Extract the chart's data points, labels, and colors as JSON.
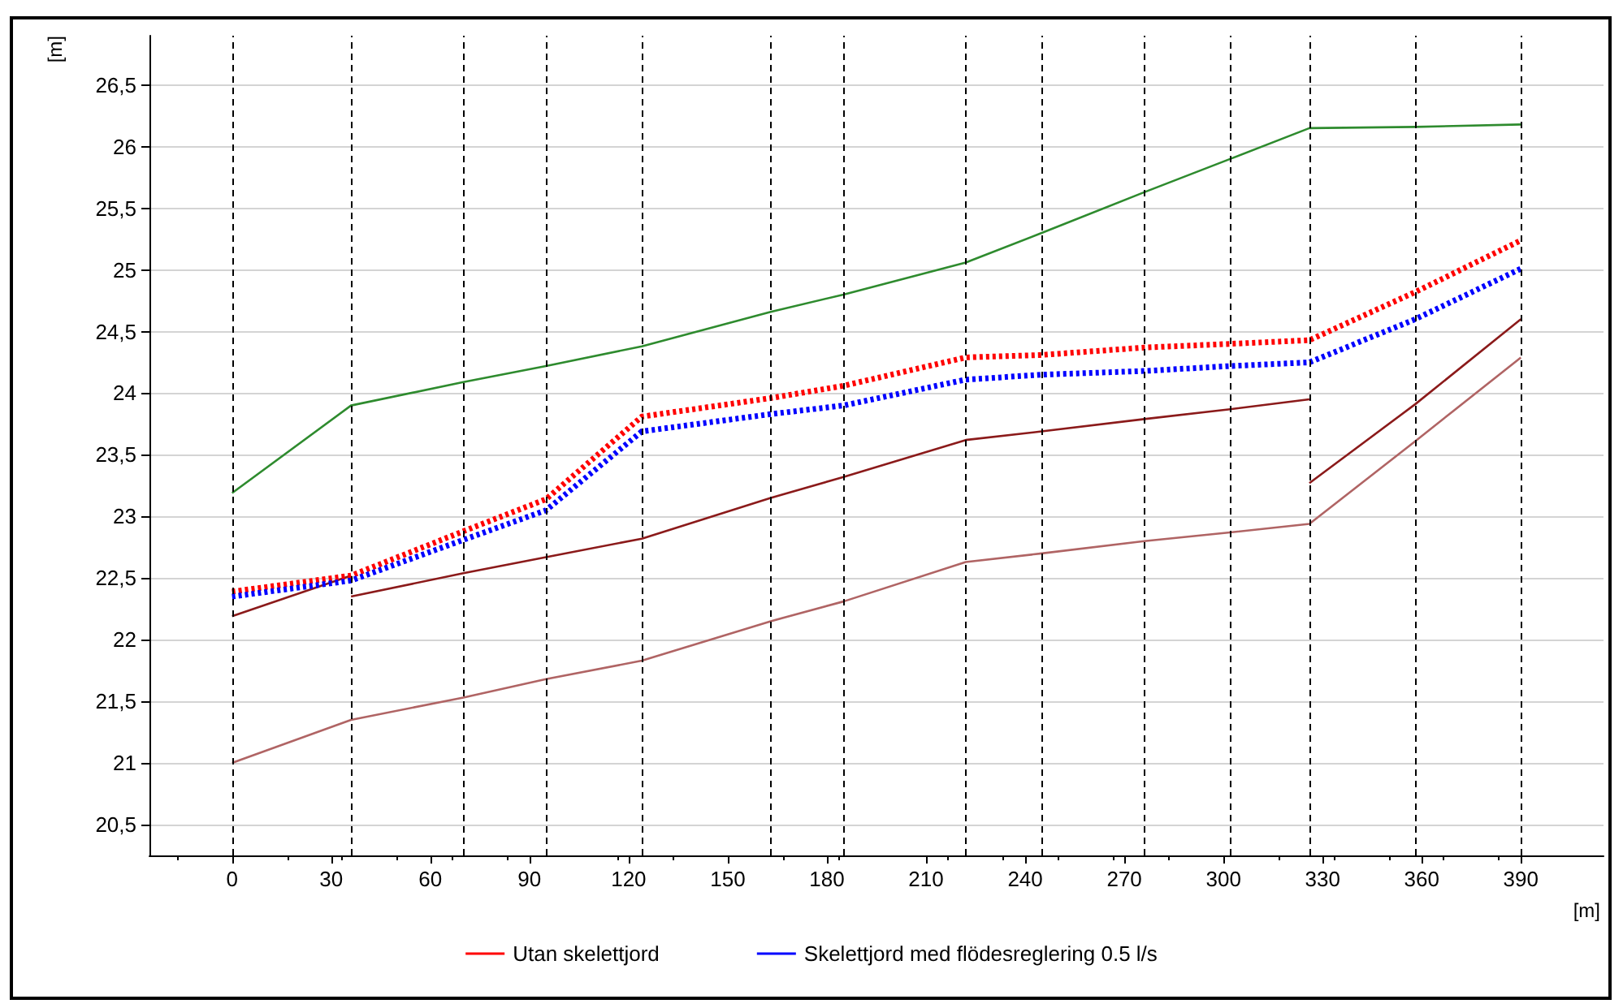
{
  "chart_data": {
    "type": "line",
    "xlabel": "[m]",
    "ylabel": "[m]",
    "xlim": [
      -25,
      415
    ],
    "xticks": [
      0,
      30,
      60,
      90,
      120,
      150,
      180,
      210,
      240,
      270,
      300,
      330,
      360,
      390
    ],
    "ylim": [
      20.25,
      26.9
    ],
    "yticks": [
      {
        "value": 20.5,
        "label": "20,5"
      },
      21,
      {
        "value": 21.5,
        "label": "21,5"
      },
      22,
      {
        "value": 22.5,
        "label": "22,5"
      },
      23,
      {
        "value": 23.5,
        "label": "23,5"
      },
      24,
      {
        "value": 24.5,
        "label": "24,5"
      },
      25,
      {
        "value": 25.5,
        "label": "25,5"
      },
      26,
      {
        "value": 26.5,
        "label": "26,5"
      }
    ],
    "grid": "y",
    "legend": "bottom",
    "marker": "none",
    "series": [
      {
        "color": "#2e8b2e",
        "line_style": "solid",
        "x": [
          0,
          36,
          70,
          95,
          124,
          163,
          185,
          222,
          245,
          276,
          302,
          326,
          358,
          390
        ],
        "values": [
          23.19,
          23.9,
          24.09,
          24.22,
          24.38,
          24.66,
          24.8,
          25.06,
          25.3,
          25.63,
          25.9,
          26.15,
          26.16,
          26.18
        ]
      },
      {
        "color": "#b06464",
        "line_style": "solid",
        "x": [
          0,
          36,
          70,
          95,
          124,
          163,
          185,
          222,
          245,
          276,
          302,
          326,
          358,
          390
        ],
        "values": [
          21.0,
          21.35,
          21.53,
          21.68,
          21.83,
          22.15,
          22.31,
          22.63,
          22.7,
          22.8,
          22.87,
          22.94,
          23.61,
          24.29
        ]
      },
      {
        "color": "#8b1a1a",
        "line_style": "solid",
        "x": [
          0,
          36
        ],
        "values": [
          22.19,
          22.52
        ]
      },
      {
        "color": "#8b1a1a",
        "line_style": "solid",
        "x": [
          36,
          70,
          95,
          124,
          163,
          185,
          222,
          245,
          276,
          302,
          326
        ],
        "values": [
          22.35,
          22.54,
          22.67,
          22.82,
          23.15,
          23.32,
          23.62,
          23.69,
          23.79,
          23.87,
          23.95
        ]
      },
      {
        "color": "#8b1a1a",
        "line_style": "solid",
        "x": [
          326,
          358,
          390
        ],
        "values": [
          23.27,
          23.91,
          24.6
        ]
      },
      {
        "name": "Utan skelettjord",
        "color": "#ff0000",
        "line_style": "dotted",
        "x": [
          0,
          36,
          70,
          95,
          124,
          163,
          185,
          222,
          245,
          276,
          302,
          326,
          358,
          390
        ],
        "values": [
          22.39,
          22.52,
          22.88,
          23.14,
          23.81,
          23.96,
          24.06,
          24.29,
          24.31,
          24.37,
          24.4,
          24.43,
          24.82,
          25.24
        ]
      },
      {
        "name": "Skelettjord med flödesreglering 0.5 l/s",
        "color": "#0000ff",
        "line_style": "dotted",
        "x": [
          0,
          36,
          70,
          95,
          124,
          163,
          185,
          222,
          245,
          276,
          302,
          326,
          358,
          390
        ],
        "values": [
          22.35,
          22.48,
          22.81,
          23.05,
          23.69,
          23.83,
          23.9,
          24.11,
          24.15,
          24.18,
          24.22,
          24.25,
          24.6,
          25.01
        ]
      }
    ],
    "ref_lines": [
      {
        "axis": "x",
        "value": 0,
        "color": "#000000",
        "line_style": "dashed"
      },
      {
        "axis": "x",
        "value": 36,
        "color": "#000000",
        "line_style": "dashed"
      },
      {
        "axis": "x",
        "value": 70,
        "color": "#000000",
        "line_style": "dashed"
      },
      {
        "axis": "x",
        "value": 95,
        "color": "#000000",
        "line_style": "dashed"
      },
      {
        "axis": "x",
        "value": 124,
        "color": "#000000",
        "line_style": "dashed"
      },
      {
        "axis": "x",
        "value": 163,
        "color": "#000000",
        "line_style": "dashed"
      },
      {
        "axis": "x",
        "value": 185,
        "color": "#000000",
        "line_style": "dashed"
      },
      {
        "axis": "x",
        "value": 222,
        "color": "#000000",
        "line_style": "dashed"
      },
      {
        "axis": "x",
        "value": 245,
        "color": "#000000",
        "line_style": "dashed"
      },
      {
        "axis": "x",
        "value": 276,
        "color": "#000000",
        "line_style": "dashed"
      },
      {
        "axis": "x",
        "value": 302,
        "color": "#000000",
        "line_style": "dashed"
      },
      {
        "axis": "x",
        "value": 326,
        "color": "#000000",
        "line_style": "dashed"
      },
      {
        "axis": "x",
        "value": 358,
        "color": "#000000",
        "line_style": "dashed"
      },
      {
        "axis": "x",
        "value": 390,
        "color": "#000000",
        "line_style": "dashed"
      }
    ]
  }
}
